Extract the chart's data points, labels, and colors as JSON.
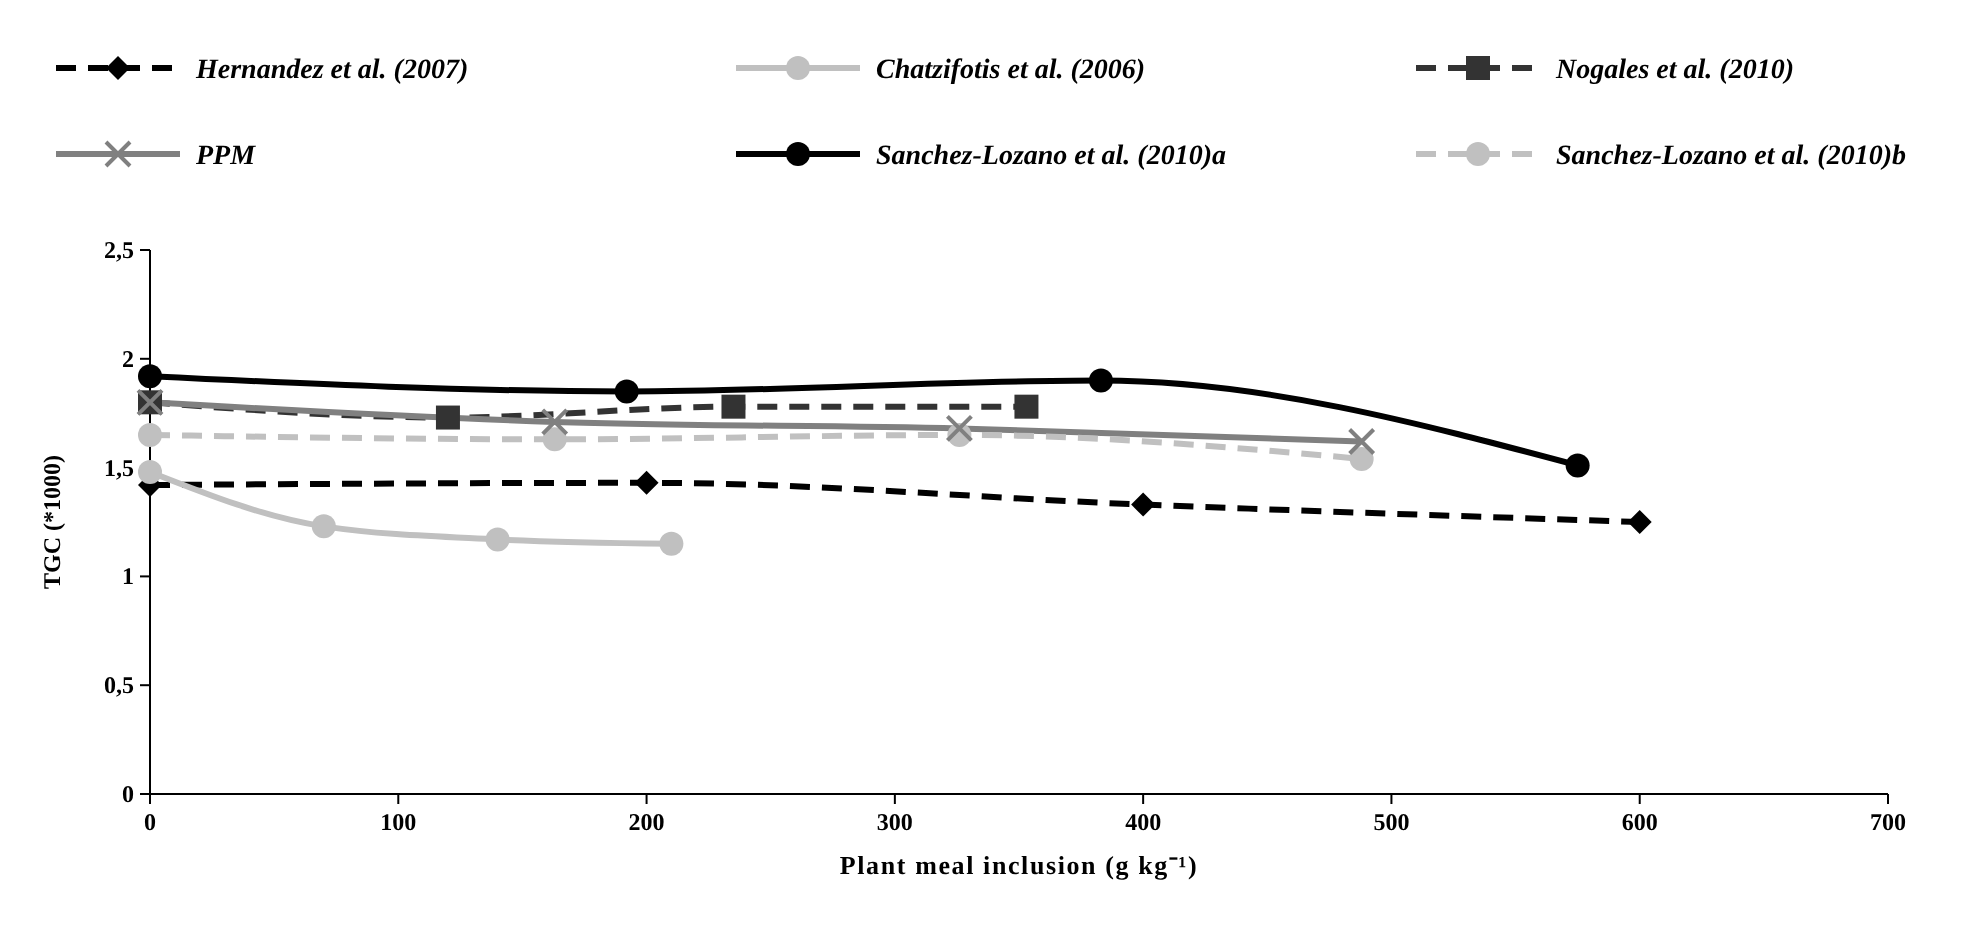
{
  "chart_data": {
    "type": "line",
    "xlabel": "Plant meal inclusion (g kg⁻¹)",
    "ylabel": "TGC (*1000)",
    "xlim": [
      0,
      700
    ],
    "xticks": [
      0,
      100,
      200,
      300,
      400,
      500,
      600,
      700
    ],
    "ylim": [
      0,
      2.5
    ],
    "yticks": [
      0,
      {
        "value": 0.5,
        "label": "0,5"
      },
      1,
      {
        "value": 1.5,
        "label": "1,5"
      },
      2,
      {
        "value": 2.5,
        "label": "2,5"
      }
    ],
    "grid": false,
    "legend": "top",
    "series": [
      {
        "name": "Hernandez et al. (2007)",
        "color": "#000000",
        "marker": "diamond",
        "line_style": "dashed",
        "x": [
          0,
          200,
          400,
          600
        ],
        "values": [
          1.42,
          1.43,
          1.33,
          1.25
        ]
      },
      {
        "name": "Chatzifotis et al. (2006)",
        "color": "#c0c0c0",
        "marker": "circle",
        "line_style": "solid",
        "x": [
          0,
          70,
          140,
          210
        ],
        "values": [
          1.48,
          1.23,
          1.17,
          1.15
        ]
      },
      {
        "name": "Nogales et al. (2010)",
        "color": "#333333",
        "marker": "square",
        "line_style": "dashed",
        "x": [
          0,
          120,
          235,
          353
        ],
        "values": [
          1.8,
          1.73,
          1.78,
          1.78
        ]
      },
      {
        "name": "PPM",
        "color": "#808080",
        "marker": "cross",
        "line_style": "solid",
        "x": [
          0,
          163,
          326,
          488
        ],
        "values": [
          1.8,
          1.71,
          1.68,
          1.62
        ]
      },
      {
        "name": "Sanchez-Lozano et al. (2010)a",
        "color": "#000000",
        "marker": "circle",
        "line_style": "solid",
        "x": [
          0,
          192,
          383,
          575
        ],
        "values": [
          1.92,
          1.85,
          1.9,
          1.51
        ]
      },
      {
        "name": "Sanchez-Lozano et al. (2010)b",
        "color": "#c0c0c0",
        "marker": "circle",
        "line_style": "dashed",
        "x": [
          0,
          163,
          326,
          488
        ],
        "values": [
          1.65,
          1.63,
          1.65,
          1.54
        ]
      }
    ]
  }
}
